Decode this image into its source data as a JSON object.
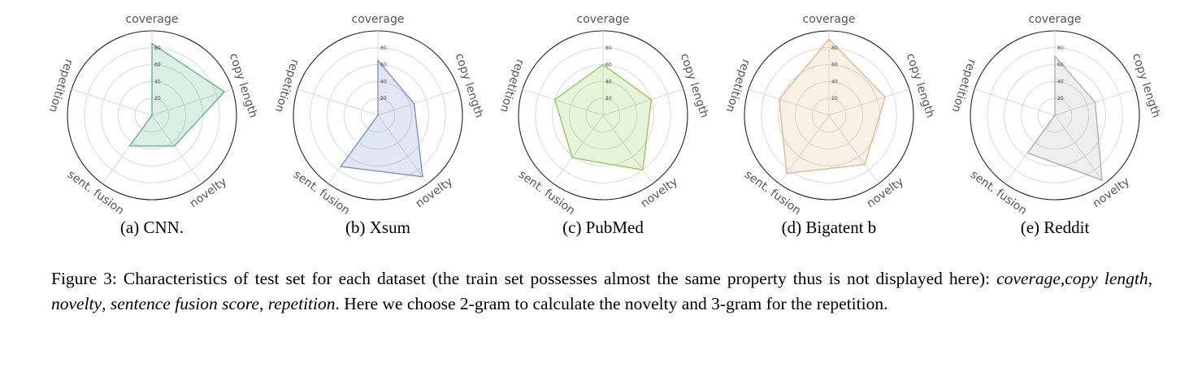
{
  "chart_data": [
    {
      "type": "radar",
      "axes": [
        "coverage",
        "copy length",
        "novelty",
        "sent. fusion",
        "repetition"
      ],
      "rticks": [
        "20",
        "40",
        "60",
        "80"
      ],
      "rlim": [
        0,
        100
      ],
      "values": [
        85,
        90,
        45,
        45,
        0
      ],
      "color": "#5cb88a",
      "caption": "(a) CNN."
    },
    {
      "type": "radar",
      "axes": [
        "coverage",
        "copy length",
        "novelty",
        "sent. fusion",
        "repetition"
      ],
      "rticks": [
        "20",
        "40",
        "60",
        "80"
      ],
      "rlim": [
        0,
        100
      ],
      "values": [
        65,
        45,
        90,
        75,
        0
      ],
      "color": "#7b92cf",
      "caption": "(b) Xsum"
    },
    {
      "type": "radar",
      "axes": [
        "coverage",
        "copy length",
        "novelty",
        "sent. fusion",
        "repetition"
      ],
      "rticks": [
        "20",
        "40",
        "60",
        "80"
      ],
      "rlim": [
        0,
        100
      ],
      "values": [
        60,
        60,
        80,
        62,
        60
      ],
      "color": "#8fce55",
      "caption": "(c) PubMed"
    },
    {
      "type": "radar",
      "axes": [
        "coverage",
        "copy length",
        "novelty",
        "sent. fusion",
        "repetition"
      ],
      "rticks": [
        "20",
        "40",
        "60",
        "80"
      ],
      "rlim": [
        0,
        100
      ],
      "values": [
        90,
        70,
        72,
        85,
        62
      ],
      "color": "#e7b98a",
      "caption": "(d) Bigatent b"
    },
    {
      "type": "radar",
      "axes": [
        "coverage",
        "copy length",
        "novelty",
        "sent. fusion",
        "repetition"
      ],
      "rticks": [
        "20",
        "40",
        "60",
        "80"
      ],
      "rlim": [
        0,
        100
      ],
      "values": [
        70,
        50,
        95,
        55,
        0
      ],
      "color": "#b0b0b0",
      "caption": "(e) Reddit"
    }
  ],
  "figure_caption": {
    "prefix": "Figure 3: Characteristics of test set for each dataset (the train set possesses almost the same property thus is not displayed here): ",
    "m_coverage": "coverage",
    "sep1": ",",
    "m_copy": "copy length",
    "sep2": ", ",
    "m_novelty": "novelty",
    "sep3": ", ",
    "m_fusion": "sentence fusion score",
    "sep4": ", ",
    "m_repetition": "repetition",
    "suffix": ". Here we choose 2-gram to calculate the novelty and 3-gram for the repetition."
  }
}
